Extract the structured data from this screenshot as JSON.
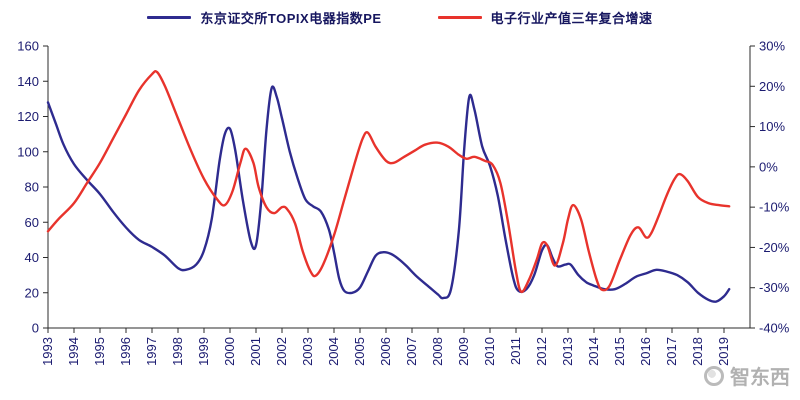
{
  "watermark": {
    "text": "智东西"
  },
  "chart_data": {
    "type": "line",
    "title": "",
    "x_domain": [
      1993,
      2020
    ],
    "x_axis": {
      "tick_labels": [
        "1993",
        "1994",
        "1995",
        "1996",
        "1997",
        "1998",
        "1999",
        "2000",
        "2001",
        "2002",
        "2003",
        "2004",
        "2005",
        "2006",
        "2007",
        "2008",
        "2009",
        "2010",
        "2011",
        "2012",
        "2013",
        "2014",
        "2015",
        "2016",
        "2017",
        "2018",
        "2019"
      ]
    },
    "left_axis": {
      "min": 0,
      "max": 160,
      "tick_labels": [
        "160",
        "140",
        "120",
        "100",
        "80",
        "60",
        "40",
        "20",
        "0"
      ]
    },
    "right_axis": {
      "min": -40,
      "max": 30,
      "tick_labels": [
        "30%",
        "20%",
        "10%",
        "0%",
        "-10%",
        "-20%",
        "-30%",
        "-40%"
      ]
    },
    "grid": false,
    "legend_position": "top",
    "axis_color": "#2b2b2b",
    "tick_text_color": "#1b1b70",
    "series": [
      {
        "name": "东京证交所TOPIX电器指数PE",
        "axis": "left",
        "color": "#2e2b8f",
        "points": [
          [
            1993.0,
            128
          ],
          [
            1993.3,
            116
          ],
          [
            1993.6,
            104
          ],
          [
            1994.0,
            93
          ],
          [
            1994.5,
            84
          ],
          [
            1995.0,
            76
          ],
          [
            1995.5,
            66
          ],
          [
            1996.0,
            57
          ],
          [
            1996.5,
            50
          ],
          [
            1997.0,
            46
          ],
          [
            1997.5,
            41
          ],
          [
            1998.0,
            34
          ],
          [
            1998.3,
            33
          ],
          [
            1998.7,
            36
          ],
          [
            1999.0,
            44
          ],
          [
            1999.3,
            62
          ],
          [
            1999.6,
            95
          ],
          [
            1999.8,
            110
          ],
          [
            2000.0,
            113
          ],
          [
            2000.2,
            101
          ],
          [
            2000.5,
            72
          ],
          [
            2000.8,
            49
          ],
          [
            2001.0,
            47
          ],
          [
            2001.2,
            72
          ],
          [
            2001.4,
            112
          ],
          [
            2001.6,
            136
          ],
          [
            2001.8,
            131
          ],
          [
            2002.0,
            119
          ],
          [
            2002.3,
            100
          ],
          [
            2002.6,
            85
          ],
          [
            2002.9,
            73
          ],
          [
            2003.2,
            69
          ],
          [
            2003.5,
            66
          ],
          [
            2003.8,
            56
          ],
          [
            2004.0,
            43
          ],
          [
            2004.2,
            28
          ],
          [
            2004.4,
            21
          ],
          [
            2004.7,
            20
          ],
          [
            2005.0,
            23
          ],
          [
            2005.3,
            32
          ],
          [
            2005.6,
            41
          ],
          [
            2005.9,
            43
          ],
          [
            2006.2,
            42
          ],
          [
            2006.5,
            39
          ],
          [
            2006.8,
            35
          ],
          [
            2007.2,
            29
          ],
          [
            2007.6,
            24
          ],
          [
            2008.0,
            19
          ],
          [
            2008.2,
            17
          ],
          [
            2008.5,
            22
          ],
          [
            2008.8,
            55
          ],
          [
            2009.0,
            100
          ],
          [
            2009.2,
            131
          ],
          [
            2009.4,
            124
          ],
          [
            2009.7,
            103
          ],
          [
            2010.0,
            92
          ],
          [
            2010.3,
            75
          ],
          [
            2010.6,
            50
          ],
          [
            2010.9,
            28
          ],
          [
            2011.1,
            21
          ],
          [
            2011.4,
            22
          ],
          [
            2011.7,
            30
          ],
          [
            2012.0,
            44
          ],
          [
            2012.2,
            47
          ],
          [
            2012.4,
            40
          ],
          [
            2012.6,
            35
          ],
          [
            2012.9,
            36
          ],
          [
            2013.1,
            36
          ],
          [
            2013.4,
            30
          ],
          [
            2013.7,
            26
          ],
          [
            2014.0,
            24
          ],
          [
            2014.4,
            22
          ],
          [
            2014.8,
            22
          ],
          [
            2015.2,
            25
          ],
          [
            2015.6,
            29
          ],
          [
            2016.0,
            31
          ],
          [
            2016.4,
            33
          ],
          [
            2016.8,
            32
          ],
          [
            2017.2,
            30
          ],
          [
            2017.6,
            26
          ],
          [
            2018.0,
            20
          ],
          [
            2018.4,
            16
          ],
          [
            2018.7,
            15
          ],
          [
            2019.0,
            18
          ],
          [
            2019.2,
            22
          ]
        ]
      },
      {
        "name": "电子行业产值三年复合增速",
        "axis": "right",
        "color": "#e8332c",
        "points": [
          [
            1993.0,
            -16
          ],
          [
            1993.4,
            -13
          ],
          [
            1994.0,
            -9
          ],
          [
            1994.5,
            -4
          ],
          [
            1995.0,
            1
          ],
          [
            1995.5,
            7
          ],
          [
            1996.0,
            13
          ],
          [
            1996.5,
            19
          ],
          [
            1997.0,
            23
          ],
          [
            1997.2,
            23.5
          ],
          [
            1997.5,
            20
          ],
          [
            1998.0,
            12
          ],
          [
            1998.5,
            4
          ],
          [
            1999.0,
            -3
          ],
          [
            1999.5,
            -8
          ],
          [
            1999.8,
            -9.5
          ],
          [
            2000.1,
            -6
          ],
          [
            2000.4,
            1
          ],
          [
            2000.6,
            4.5
          ],
          [
            2000.9,
            1
          ],
          [
            2001.1,
            -5
          ],
          [
            2001.4,
            -10
          ],
          [
            2001.7,
            -11.5
          ],
          [
            2002.0,
            -10
          ],
          [
            2002.2,
            -10.5
          ],
          [
            2002.5,
            -14
          ],
          [
            2002.8,
            -21
          ],
          [
            2003.1,
            -26
          ],
          [
            2003.3,
            -27
          ],
          [
            2003.6,
            -24
          ],
          [
            2004.0,
            -17
          ],
          [
            2004.4,
            -8
          ],
          [
            2004.8,
            1
          ],
          [
            2005.1,
            7
          ],
          [
            2005.3,
            8.5
          ],
          [
            2005.6,
            5
          ],
          [
            2006.0,
            1.5
          ],
          [
            2006.3,
            1
          ],
          [
            2006.7,
            2.5
          ],
          [
            2007.1,
            4
          ],
          [
            2007.5,
            5.5
          ],
          [
            2008.0,
            6
          ],
          [
            2008.4,
            5
          ],
          [
            2008.8,
            3
          ],
          [
            2009.1,
            2
          ],
          [
            2009.4,
            2.5
          ],
          [
            2009.8,
            1.5
          ],
          [
            2010.1,
            0.5
          ],
          [
            2010.4,
            -4
          ],
          [
            2010.7,
            -14
          ],
          [
            2011.0,
            -26
          ],
          [
            2011.2,
            -31
          ],
          [
            2011.5,
            -28
          ],
          [
            2011.8,
            -23
          ],
          [
            2012.0,
            -19
          ],
          [
            2012.2,
            -19.5
          ],
          [
            2012.5,
            -24.5
          ],
          [
            2012.8,
            -19
          ],
          [
            2013.0,
            -13
          ],
          [
            2013.2,
            -9.5
          ],
          [
            2013.5,
            -13
          ],
          [
            2013.8,
            -21
          ],
          [
            2014.1,
            -28
          ],
          [
            2014.3,
            -30.5
          ],
          [
            2014.6,
            -29.5
          ],
          [
            2015.0,
            -23
          ],
          [
            2015.4,
            -17
          ],
          [
            2015.7,
            -15
          ],
          [
            2016.0,
            -17.5
          ],
          [
            2016.2,
            -16.5
          ],
          [
            2016.5,
            -12
          ],
          [
            2016.8,
            -7
          ],
          [
            2017.1,
            -3
          ],
          [
            2017.3,
            -1.8
          ],
          [
            2017.6,
            -3.5
          ],
          [
            2018.0,
            -7.5
          ],
          [
            2018.4,
            -9
          ],
          [
            2018.8,
            -9.5
          ],
          [
            2019.2,
            -9.8
          ]
        ]
      }
    ]
  }
}
